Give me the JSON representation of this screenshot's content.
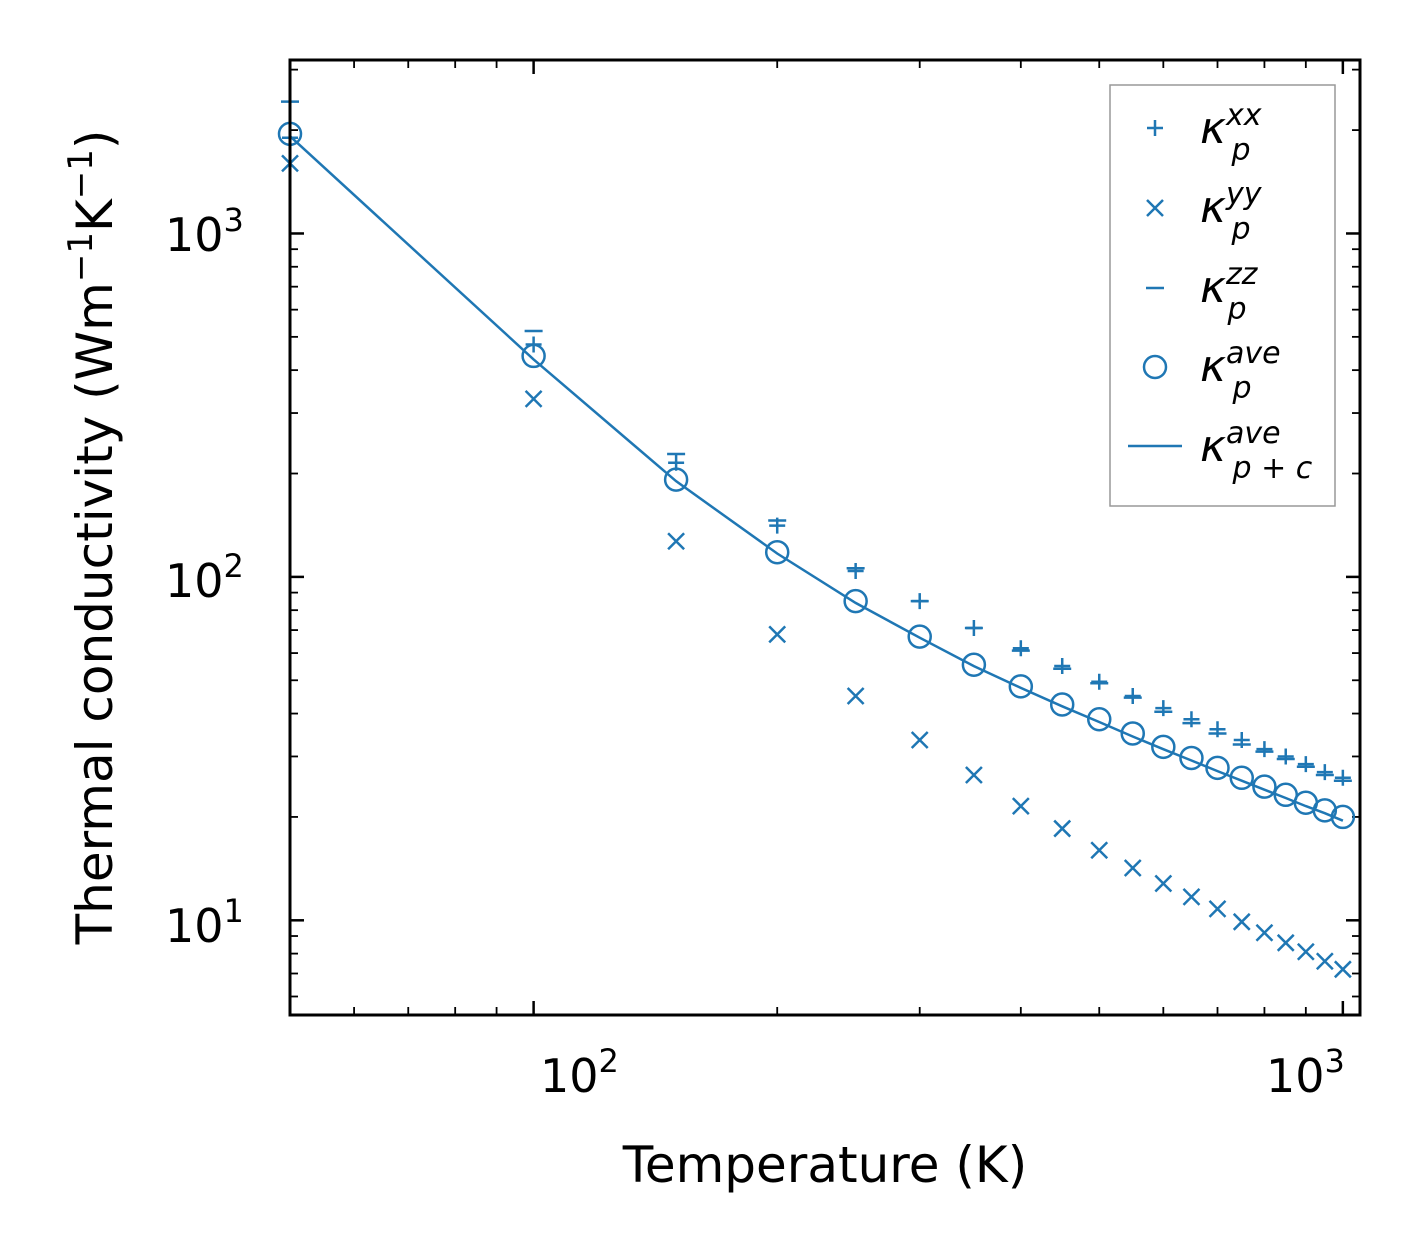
{
  "chart_data": {
    "type": "scatter",
    "xscale": "log",
    "yscale": "log",
    "xlim": [
      50,
      1050
    ],
    "ylim": [
      5.3,
      3200
    ],
    "xlabel": "Temperature (K)",
    "ylabel": "Thermal conductivity (Wm",
    "ylabel_unit_inner": "K",
    "ylabel_close": ")",
    "ylabel_exp": "−1",
    "xticks": [
      {
        "base": "10",
        "exp": "2",
        "value": 100
      },
      {
        "base": "10",
        "exp": "3",
        "value": 1000
      }
    ],
    "yticks": [
      {
        "base": "10",
        "exp": "1",
        "value": 10
      },
      {
        "base": "10",
        "exp": "2",
        "value": 100
      },
      {
        "base": "10",
        "exp": "3",
        "value": 1000
      }
    ],
    "color": "#1f77b4",
    "x": [
      50,
      100,
      150,
      200,
      250,
      300,
      350,
      400,
      450,
      500,
      550,
      600,
      650,
      700,
      750,
      800,
      850,
      900,
      950,
      1000
    ],
    "series": [
      {
        "name": "kappa_p_xx",
        "marker": "plus",
        "values": [
          1900,
          475,
          215,
          141,
          104,
          85,
          71,
          62,
          55,
          49.5,
          45,
          41.5,
          38.5,
          36,
          33.5,
          31.5,
          30,
          28.5,
          27,
          26
        ]
      },
      {
        "name": "kappa_p_yy",
        "marker": "x",
        "values": [
          1600,
          330,
          127,
          68,
          45,
          33.5,
          26.5,
          21.5,
          18.5,
          16,
          14.2,
          12.8,
          11.7,
          10.8,
          9.9,
          9.2,
          8.6,
          8.1,
          7.6,
          7.2
        ]
      },
      {
        "name": "kappa_p_zz",
        "marker": "hline",
        "values": [
          2420,
          520,
          228,
          146,
          106,
          85,
          71,
          61,
          54,
          49,
          44.5,
          40.5,
          37.5,
          35,
          32.5,
          31,
          29.5,
          28,
          26.5,
          25.5
        ]
      },
      {
        "name": "kappa_p_ave",
        "marker": "circle",
        "values": [
          1950,
          440,
          192,
          118,
          85,
          67,
          55.5,
          48,
          42.5,
          38.5,
          35,
          32,
          29.7,
          27.8,
          26,
          24.5,
          23.2,
          22,
          20.9,
          20
        ]
      },
      {
        "name": "kappa_p+c_ave",
        "marker": "line",
        "values": [
          1920,
          430,
          190,
          117,
          84,
          66.5,
          55,
          47.5,
          42,
          37.8,
          34.3,
          31.5,
          29.2,
          27.2,
          25.5,
          24,
          22.7,
          21.5,
          20.5,
          19.5
        ]
      }
    ],
    "legend": {
      "position": "top-right",
      "entries": [
        {
          "symbol": "κ",
          "sub": "p",
          "sup": "xx"
        },
        {
          "symbol": "κ",
          "sub": "p",
          "sup": "yy"
        },
        {
          "symbol": "κ",
          "sub": "p",
          "sup": "zz"
        },
        {
          "symbol": "κ",
          "sub": "p",
          "sup": "ave"
        },
        {
          "symbol": "κ",
          "sub": "p + c",
          "sup": "ave"
        }
      ]
    }
  }
}
